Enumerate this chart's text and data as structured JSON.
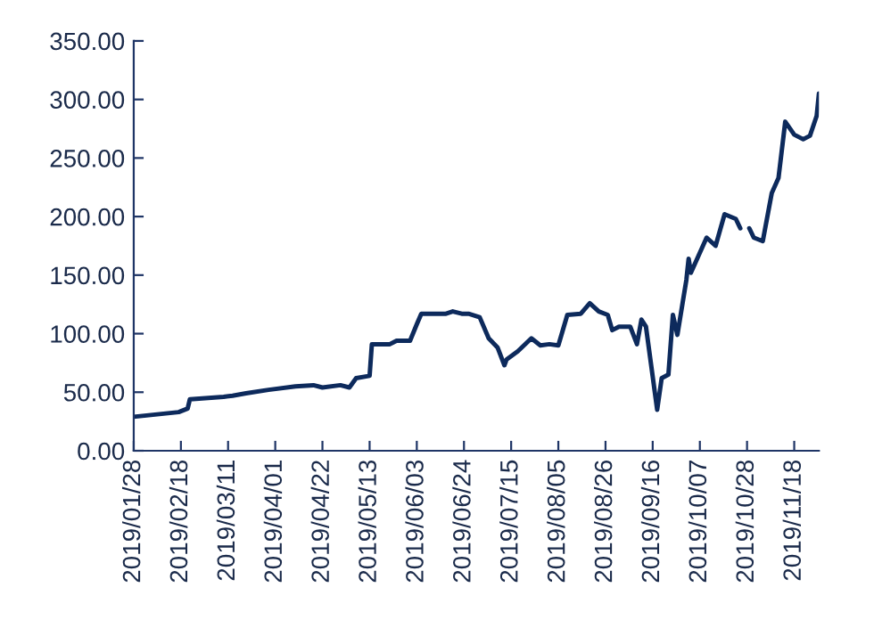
{
  "chart_data": {
    "type": "line",
    "x": [
      "2019-01-28",
      "2019-02-17",
      "2019-02-21",
      "2019-02-22",
      "2019-03-09",
      "2019-03-13",
      "2019-03-19",
      "2019-03-29",
      "2019-04-10",
      "2019-04-18",
      "2019-04-22",
      "2019-04-30",
      "2019-05-04",
      "2019-05-07",
      "2019-05-13",
      "2019-05-14",
      "2019-05-22",
      "2019-05-25",
      "2019-05-31",
      "2019-06-03",
      "2019-06-05",
      "2019-06-16",
      "2019-06-19",
      "2019-06-23",
      "2019-06-26",
      "2019-07-01",
      "2019-07-05",
      "2019-07-09",
      "2019-07-12",
      "2019-07-13",
      "2019-07-18",
      "2019-07-24",
      "2019-07-28",
      "2019-08-01",
      "2019-08-05",
      "2019-08-09",
      "2019-08-15",
      "2019-08-19",
      "2019-08-23",
      "2019-08-27",
      "2019-08-29",
      "2019-09-01",
      "2019-09-06",
      "2019-09-09",
      "2019-09-11",
      "2019-09-13",
      "2019-09-18",
      "2019-09-20",
      "2019-09-23",
      "2019-09-25",
      "2019-09-27",
      "2019-10-01",
      "2019-10-02",
      "2019-10-03",
      "2019-10-10",
      "2019-10-14",
      "2019-10-18",
      "2019-10-23",
      "2019-10-25",
      "2019-10-27",
      "2019-10-29",
      "2019-10-31",
      "2019-11-04",
      "2019-11-08",
      "2019-11-11",
      "2019-11-14",
      "2019-11-18",
      "2019-11-22",
      "2019-11-25",
      "2019-11-28",
      "2019-11-29"
    ],
    "series": [
      {
        "color": "#0d2a5c",
        "values": [
          29,
          33,
          36,
          44,
          46,
          47,
          49,
          52,
          55,
          56,
          54,
          56,
          54,
          62,
          64,
          91,
          91,
          94,
          94,
          108,
          117,
          117,
          119,
          117,
          117,
          114,
          96,
          88,
          73,
          78,
          85,
          96,
          90,
          91,
          90,
          116,
          117,
          126,
          119,
          116,
          103,
          106,
          106,
          91,
          112,
          106,
          35,
          62,
          65,
          116,
          99,
          146,
          164,
          152,
          182,
          175,
          202,
          198,
          190,
          null,
          190,
          182,
          179,
          220,
          233,
          281,
          270,
          266,
          269,
          286,
          305
        ]
      }
    ],
    "xlim": [
      "2019-01-28",
      "2019-11-29"
    ],
    "xticks": [
      {
        "value": "2019-01-28",
        "label": "2019/01/28"
      },
      {
        "value": "2019-02-18",
        "label": "2019/02/18"
      },
      {
        "value": "2019-03-11",
        "label": "2019/03/11"
      },
      {
        "value": "2019-04-01",
        "label": "2019/04/01"
      },
      {
        "value": "2019-04-22",
        "label": "2019/04/22"
      },
      {
        "value": "2019-05-13",
        "label": "2019/05/13"
      },
      {
        "value": "2019-06-03",
        "label": "2019/06/03"
      },
      {
        "value": "2019-06-24",
        "label": "2019/06/24"
      },
      {
        "value": "2019-07-15",
        "label": "2019/07/15"
      },
      {
        "value": "2019-08-05",
        "label": "2019/08/05"
      },
      {
        "value": "2019-08-26",
        "label": "2019/08/26"
      },
      {
        "value": "2019-09-16",
        "label": "2019/09/16"
      },
      {
        "value": "2019-10-07",
        "label": "2019/10/07"
      },
      {
        "value": "2019-10-28",
        "label": "2019/10/28"
      },
      {
        "value": "2019-11-18",
        "label": "2019/11/18"
      }
    ],
    "ylim": [
      0,
      350
    ],
    "yticks": [
      {
        "value": 0,
        "label": "0.00"
      },
      {
        "value": 50,
        "label": "50.00"
      },
      {
        "value": 100,
        "label": "100.00"
      },
      {
        "value": 150,
        "label": "150.00"
      },
      {
        "value": 200,
        "label": "200.00"
      },
      {
        "value": 250,
        "label": "250.00"
      },
      {
        "value": 300,
        "label": "300.00"
      },
      {
        "value": 350,
        "label": "350.00"
      }
    ],
    "grid": false,
    "legend": false
  }
}
